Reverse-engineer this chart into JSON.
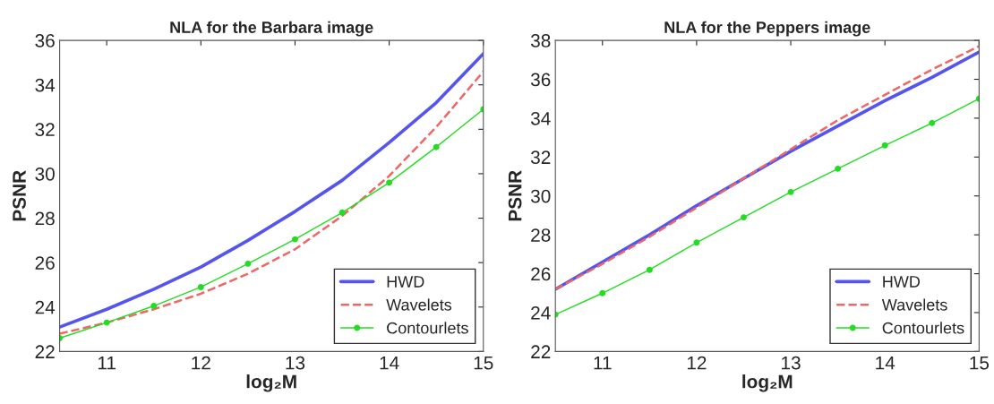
{
  "chart_data": [
    {
      "type": "line",
      "title": "NLA for the Barbara image",
      "xlabel": "log₂M",
      "ylabel": "PSNR",
      "x": [
        10.5,
        11,
        11.5,
        12,
        12.5,
        13,
        13.5,
        14,
        14.5,
        15
      ],
      "xlim": [
        10.5,
        15
      ],
      "xticks": [
        11,
        12,
        13,
        14,
        15
      ],
      "ylim": [
        22,
        36
      ],
      "yticks": [
        22,
        24,
        26,
        28,
        30,
        32,
        34,
        36
      ],
      "grid": false,
      "legend": "bottom right",
      "series": [
        {
          "name": "HWD",
          "color": "#5555ee",
          "line_style": "solid",
          "marker": "none",
          "values": [
            23.1,
            23.9,
            24.8,
            25.8,
            27.0,
            28.3,
            29.7,
            31.4,
            33.2,
            35.4
          ]
        },
        {
          "name": "Wavelets",
          "color": "#ee6666",
          "line_style": "dashed",
          "marker": "none",
          "values": [
            22.8,
            23.3,
            23.9,
            24.6,
            25.5,
            26.6,
            28.1,
            29.9,
            32.1,
            34.6
          ]
        },
        {
          "name": "Contourlets",
          "color": "#22dd22",
          "line_style": "solid",
          "marker": "circle",
          "values": [
            22.6,
            23.3,
            24.05,
            24.9,
            25.95,
            27.05,
            28.25,
            29.6,
            31.2,
            32.9
          ]
        }
      ]
    },
    {
      "type": "line",
      "title": "NLA for the Peppers image",
      "xlabel": "log₂M",
      "ylabel": "PSNR",
      "x": [
        10.5,
        11,
        11.5,
        12,
        12.5,
        13,
        13.5,
        14,
        14.5,
        15
      ],
      "xlim": [
        10.5,
        15
      ],
      "xticks": [
        11,
        12,
        13,
        14,
        15
      ],
      "ylim": [
        22,
        38
      ],
      "yticks": [
        22,
        24,
        26,
        28,
        30,
        32,
        34,
        36,
        38
      ],
      "grid": false,
      "legend": "bottom right",
      "series": [
        {
          "name": "HWD",
          "color": "#5555ee",
          "line_style": "solid",
          "marker": "none",
          "values": [
            25.2,
            26.6,
            28.0,
            29.5,
            30.9,
            32.3,
            33.6,
            34.9,
            36.1,
            37.4
          ]
        },
        {
          "name": "Wavelets",
          "color": "#ee6666",
          "line_style": "dashed",
          "marker": "none",
          "values": [
            25.2,
            26.5,
            27.9,
            29.4,
            30.9,
            32.4,
            33.9,
            35.2,
            36.5,
            37.7
          ]
        },
        {
          "name": "Contourlets",
          "color": "#22dd22",
          "line_style": "solid",
          "marker": "circle",
          "values": [
            23.9,
            25.0,
            26.2,
            27.6,
            28.9,
            30.2,
            31.4,
            32.6,
            33.75,
            35.0
          ]
        }
      ]
    }
  ]
}
